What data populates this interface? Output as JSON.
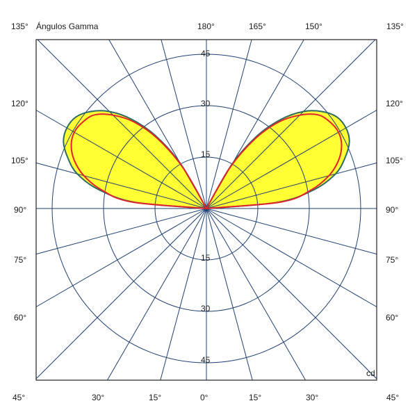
{
  "chart_data": {
    "type": "polar",
    "title": "Ángulos Gamma",
    "unit_label": "cd",
    "rings": [
      15,
      30,
      45
    ],
    "ring_labels_top": [
      "15",
      "30",
      "45"
    ],
    "ring_labels_bottom": [
      "15",
      "30",
      "45"
    ],
    "angle_labels": {
      "top": [
        "180°",
        "165°",
        "150°"
      ],
      "bottom": [
        "0°",
        "15°",
        "30°",
        "15°",
        "30°"
      ],
      "left": [
        "120°",
        "105°",
        "90°",
        "75°",
        "60°"
      ],
      "right": [
        "120°",
        "105°",
        "90°",
        "75°",
        "60°"
      ],
      "corners": {
        "top_left": "135°",
        "top_right": "135°",
        "bottom_left": "45°",
        "bottom_right": "45°"
      }
    },
    "series": [
      {
        "color": "#2e6b63",
        "fill": "#ffff33",
        "gamma": [
          95,
          100,
          105,
          110,
          115,
          120,
          125,
          130,
          135,
          140,
          145,
          150
        ],
        "values": [
          21,
          32,
          39,
          43,
          46,
          47,
          46.5,
          44,
          40,
          34,
          26,
          15
        ]
      },
      {
        "color": "#e0242a",
        "fill": "none",
        "gamma": [
          95,
          100,
          105,
          110,
          115,
          120,
          125,
          130,
          135,
          140,
          145,
          150
        ],
        "values": [
          22,
          31,
          37,
          41,
          43.5,
          44.5,
          44,
          42.5,
          38.5,
          33,
          25,
          14
        ]
      }
    ],
    "colors": {
      "grid": "#1f3f72",
      "frame": "#333333",
      "fill": "#ffff33"
    }
  }
}
